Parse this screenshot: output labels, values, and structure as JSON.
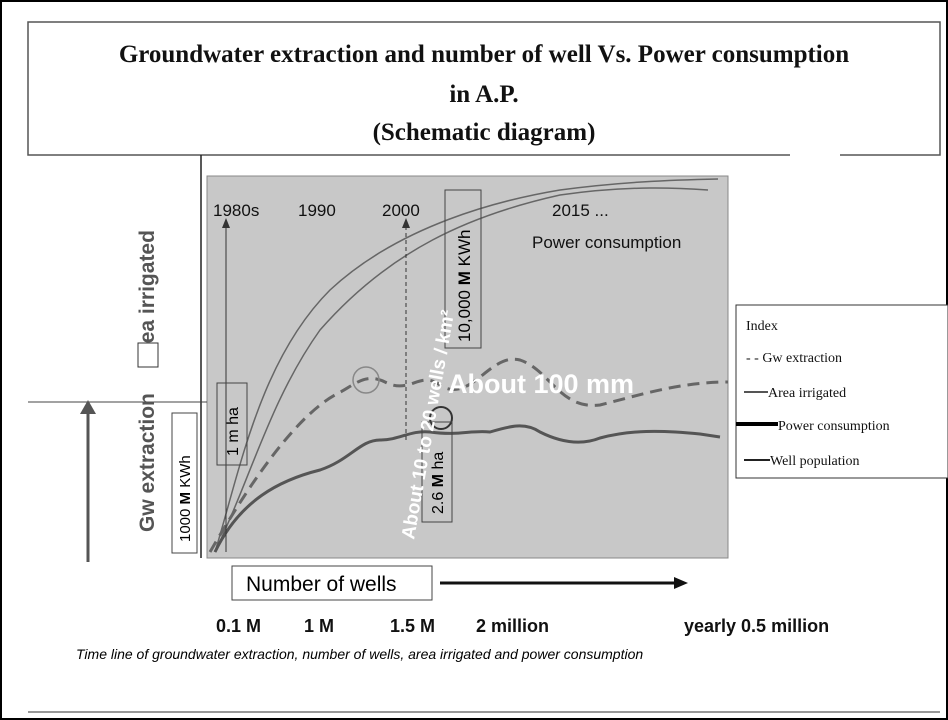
{
  "title": {
    "line1": "Groundwater extraction and number of well  Vs. Power consumption",
    "line2": "in A.P.",
    "line3": "(Schematic diagram)"
  },
  "y_label": {
    "left": "Gw extraction",
    "right": "area irrigated"
  },
  "boxes": {
    "power_1000": {
      "pre": "1000 ",
      "bold": "M",
      "post": " KWh"
    },
    "area_1m": "1 m ha",
    "area_26": {
      "pre": "2.6 ",
      "bold": "M",
      "post": " ha"
    },
    "power_10000": {
      "pre": "10,000 ",
      "bold": "M",
      "post": " KWh"
    }
  },
  "annotations": {
    "density": "About 10 to 20 wells / km²",
    "recharge": "About 100 mm",
    "power": "Power consumption"
  },
  "eras": [
    "1980s",
    "1990",
    "2000",
    "2015 ..."
  ],
  "x_label": "Number of wells",
  "well_counts": [
    "0.1 M",
    "1 M",
    "1.5 M",
    "2 million",
    "yearly 0.5 million"
  ],
  "caption": "Time line of groundwater extraction, number of wells, area irrigated and power consumption",
  "legend": {
    "title": "Index",
    "items": [
      "- - Gw extraction",
      "Area irrigated",
      "Power consumption",
      "Well population"
    ]
  }
}
